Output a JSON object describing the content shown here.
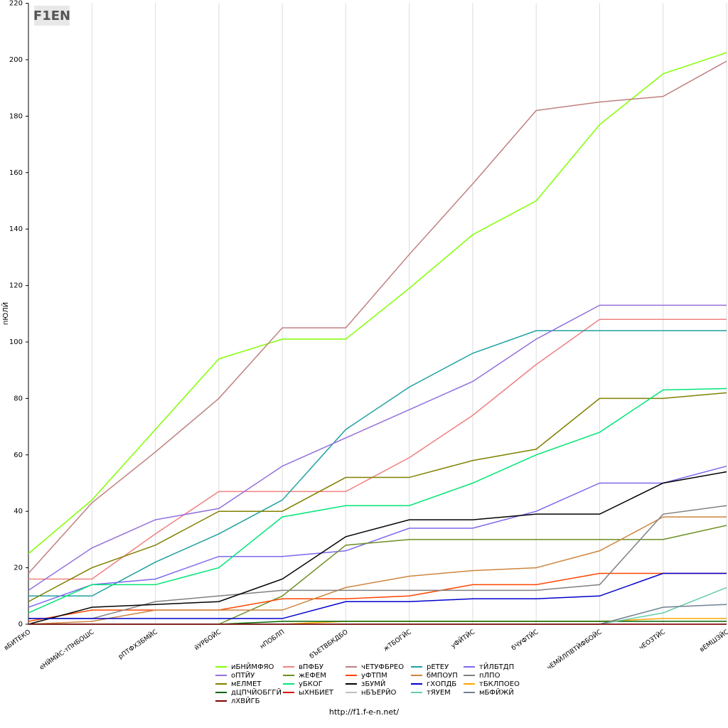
{
  "logo_text": "F1EN",
  "footer": "http://f1.f-e-n.net/",
  "chart_data": {
    "type": "line",
    "y_label": "пЮЛЙ",
    "categories": [
      "вБИТЕКО",
      "еНЙМЙС-тПНБОШС",
      "рПТФХЗБМЙС",
      "йУРБОЙС",
      "нПОБЛП",
      "бЪЕТВБКДБО",
      "жТБОГЙС",
      "уФЙТЙС",
      "бЧУФТЙС",
      "чЕМЙЛПВТЙФБОЙС",
      "чЕОЗТЙС",
      "вЕМШЗЙС"
    ],
    "ylim": [
      0,
      220
    ],
    "yticks": [
      0,
      20,
      40,
      60,
      80,
      100,
      120,
      140,
      160,
      180,
      200,
      220
    ],
    "series": [
      {
        "name": "иБНЙМФЯО",
        "color": "#80ff00",
        "values": [
          25,
          44,
          69,
          94,
          101,
          101,
          119,
          138,
          150,
          177,
          195,
          202.5
        ]
      },
      {
        "name": "вПФБУ",
        "color": "#f08080",
        "values": [
          16,
          16,
          32,
          47,
          47,
          47,
          59,
          74,
          92,
          108,
          108,
          108
        ]
      },
      {
        "name": "чЕТУФБРЕО",
        "color": "#c08080",
        "values": [
          18,
          43,
          61,
          80,
          105,
          105,
          131,
          156,
          182,
          185,
          187,
          199.5
        ]
      },
      {
        "name": "рЕТЕУ",
        "color": "#20a0a0",
        "values": [
          10,
          10,
          22,
          32,
          44,
          69,
          84,
          96,
          104,
          104,
          104,
          104
        ]
      },
      {
        "name": "тЙЛБТДП",
        "color": "#7b68ee",
        "values": [
          6,
          14,
          16,
          24,
          24,
          26,
          34,
          34,
          40,
          50,
          50,
          56
        ]
      },
      {
        "name": "оПТЙУ",
        "color": "#9370db",
        "values": [
          12,
          27,
          37,
          41,
          56,
          66,
          76,
          86,
          101,
          113,
          113,
          113
        ]
      },
      {
        "name": "жЕФЕМ",
        "color": "#6b8e23",
        "values": [
          0,
          0,
          0,
          0,
          10,
          28,
          30,
          30,
          30,
          30,
          30,
          35
        ]
      },
      {
        "name": "уФТПМ",
        "color": "#ff4500",
        "values": [
          1,
          5,
          5,
          5,
          9,
          9,
          10,
          14,
          14,
          18,
          18,
          18
        ]
      },
      {
        "name": "бМПОУП",
        "color": "#cd853f",
        "values": [
          0,
          1,
          5,
          5,
          5,
          13,
          17,
          19,
          20,
          26,
          38,
          38
        ]
      },
      {
        "name": "пЛПО",
        "color": "#808080",
        "values": [
          2,
          2,
          8,
          10,
          12,
          12,
          12,
          12,
          12,
          14,
          39,
          42
        ]
      },
      {
        "name": "мЕЛМЕТ",
        "color": "#808000",
        "values": [
          8,
          20,
          28,
          40,
          40,
          52,
          52,
          58,
          62,
          80,
          80,
          82
        ]
      },
      {
        "name": "уБКОГ",
        "color": "#00e676",
        "values": [
          4,
          14,
          14,
          20,
          38,
          42,
          42,
          50,
          60,
          68,
          83,
          83.5
        ]
      },
      {
        "name": "зБУМЙ",
        "color": "#000000",
        "values": [
          0,
          6,
          7,
          8,
          16,
          31,
          37,
          37,
          39,
          39,
          50,
          54
        ]
      },
      {
        "name": "гХОПДБ",
        "color": "#0000cd",
        "values": [
          2,
          2,
          2,
          2,
          2,
          8,
          8,
          9,
          9,
          10,
          18,
          18
        ]
      },
      {
        "name": "тБКЛПОЕО",
        "color": "#ffa500",
        "values": [
          0,
          0,
          0,
          0,
          0,
          1,
          1,
          1,
          1,
          1,
          2,
          2
        ]
      },
      {
        "name": "дЦПЧЙОБГГЙ",
        "color": "#006400",
        "values": [
          0,
          0,
          0,
          0,
          1,
          1,
          1,
          1,
          1,
          1,
          1,
          1
        ]
      },
      {
        "name": "ыХНБИЕТ",
        "color": "#dd0000",
        "values": [
          0,
          0,
          0,
          0,
          0,
          0,
          0,
          0,
          0,
          0,
          0,
          0
        ]
      },
      {
        "name": "нБЪЕРЙО",
        "color": "#c0c0c0",
        "values": [
          0,
          0,
          0,
          0,
          0,
          0,
          0,
          0,
          0,
          0,
          0,
          0
        ]
      },
      {
        "name": "тЯУЕМ",
        "color": "#66cdaa",
        "values": [
          0,
          0,
          0,
          0,
          0,
          0,
          0,
          0,
          0,
          0,
          4,
          13
        ]
      },
      {
        "name": "мБФЙЖЙ",
        "color": "#708090",
        "values": [
          0,
          0,
          0,
          0,
          0,
          0,
          0,
          0,
          0,
          0,
          6,
          7
        ]
      },
      {
        "name": "лХВЙГБ",
        "color": "#800000",
        "values": [
          0,
          0,
          0,
          0,
          0,
          0,
          0,
          0,
          0,
          0,
          0,
          0
        ]
      }
    ]
  }
}
